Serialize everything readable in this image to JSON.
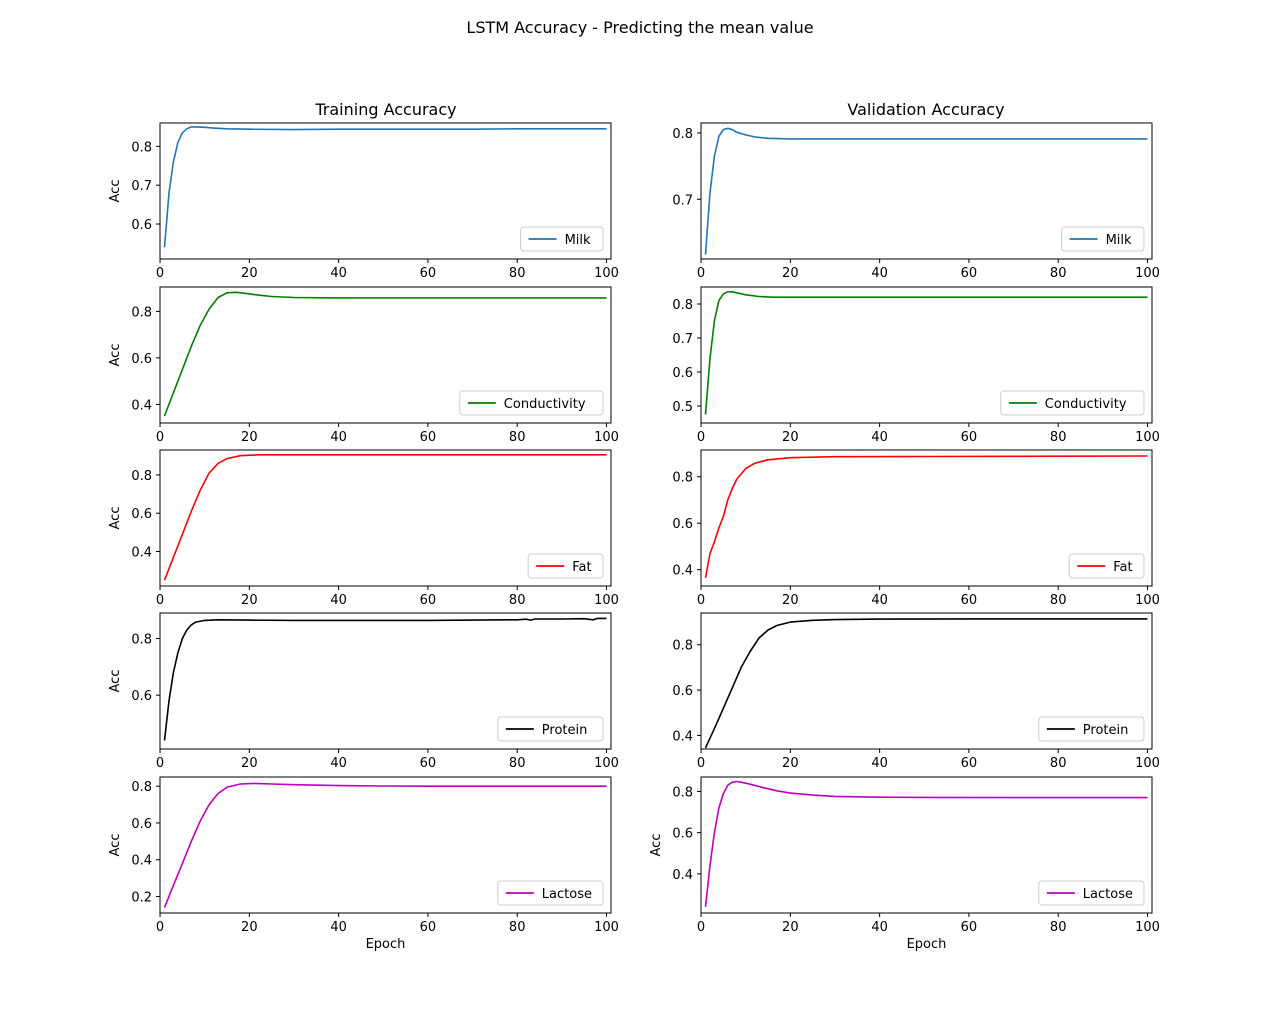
{
  "figure": {
    "suptitle": "LSTM Accuracy - Predicting the mean value",
    "col_titles": [
      "Training Accuracy",
      "Validation Accuracy"
    ]
  },
  "chart_data": [
    {
      "type": "line",
      "panel": "training",
      "row": 1,
      "col": 1,
      "ylabel": "Acc",
      "xlabel": "",
      "xlim": [
        1,
        100
      ],
      "ylim": [
        0.51,
        0.86
      ],
      "xticks": [
        0,
        20,
        40,
        60,
        80,
        100
      ],
      "yticks": [
        0.6,
        0.7,
        0.8
      ],
      "ytick_labels": [
        "0.6",
        "0.7",
        "0.8"
      ],
      "legend": "lower right",
      "series": [
        {
          "name": "Milk",
          "color": "#1f77b4",
          "points": [
            [
              1,
              0.54
            ],
            [
              2,
              0.68
            ],
            [
              3,
              0.76
            ],
            [
              4,
              0.81
            ],
            [
              5,
              0.835
            ],
            [
              6,
              0.845
            ],
            [
              7,
              0.85
            ],
            [
              8,
              0.85
            ],
            [
              10,
              0.849
            ],
            [
              12,
              0.847
            ],
            [
              15,
              0.845
            ],
            [
              20,
              0.844
            ],
            [
              30,
              0.843
            ],
            [
              40,
              0.844
            ],
            [
              50,
              0.844
            ],
            [
              60,
              0.844
            ],
            [
              70,
              0.844
            ],
            [
              80,
              0.845
            ],
            [
              90,
              0.845
            ],
            [
              100,
              0.845
            ]
          ]
        }
      ]
    },
    {
      "type": "line",
      "panel": "validation",
      "row": 1,
      "col": 2,
      "ylabel": "",
      "xlabel": "",
      "xlim": [
        1,
        100
      ],
      "ylim": [
        0.61,
        0.815
      ],
      "xticks": [
        0,
        20,
        40,
        60,
        80,
        100
      ],
      "yticks": [
        0.7,
        0.8
      ],
      "ytick_labels": [
        "0.7",
        "0.8"
      ],
      "legend": "lower right",
      "series": [
        {
          "name": "Milk",
          "color": "#1f77b4",
          "points": [
            [
              1,
              0.617
            ],
            [
              2,
              0.71
            ],
            [
              3,
              0.765
            ],
            [
              4,
              0.795
            ],
            [
              5,
              0.805
            ],
            [
              6,
              0.807
            ],
            [
              7,
              0.805
            ],
            [
              8,
              0.801
            ],
            [
              10,
              0.797
            ],
            [
              12,
              0.794
            ],
            [
              15,
              0.792
            ],
            [
              20,
              0.791
            ],
            [
              30,
              0.791
            ],
            [
              50,
              0.791
            ],
            [
              70,
              0.791
            ],
            [
              100,
              0.791
            ]
          ]
        }
      ]
    },
    {
      "type": "line",
      "panel": "training",
      "row": 2,
      "col": 1,
      "ylabel": "Acc",
      "xlabel": "",
      "xlim": [
        1,
        100
      ],
      "ylim": [
        0.32,
        0.905
      ],
      "xticks": [
        0,
        20,
        40,
        60,
        80,
        100
      ],
      "yticks": [
        0.4,
        0.6,
        0.8
      ],
      "ytick_labels": [
        "0.4",
        "0.6",
        "0.8"
      ],
      "legend": "lower right",
      "series": [
        {
          "name": "Conductivity",
          "color": "#008000",
          "points": [
            [
              1,
              0.35
            ],
            [
              3,
              0.45
            ],
            [
              5,
              0.55
            ],
            [
              7,
              0.65
            ],
            [
              9,
              0.74
            ],
            [
              11,
              0.81
            ],
            [
              13,
              0.86
            ],
            [
              15,
              0.88
            ],
            [
              17,
              0.882
            ],
            [
              19,
              0.878
            ],
            [
              22,
              0.87
            ],
            [
              25,
              0.864
            ],
            [
              30,
              0.86
            ],
            [
              40,
              0.858
            ],
            [
              50,
              0.858
            ],
            [
              60,
              0.858
            ],
            [
              70,
              0.858
            ],
            [
              80,
              0.858
            ],
            [
              90,
              0.858
            ],
            [
              100,
              0.858
            ]
          ]
        }
      ]
    },
    {
      "type": "line",
      "panel": "validation",
      "row": 2,
      "col": 2,
      "ylabel": "",
      "xlabel": "",
      "xlim": [
        1,
        100
      ],
      "ylim": [
        0.45,
        0.85
      ],
      "xticks": [
        0,
        20,
        40,
        60,
        80,
        100
      ],
      "yticks": [
        0.5,
        0.6,
        0.7,
        0.8
      ],
      "ytick_labels": [
        "0.5",
        "0.6",
        "0.7",
        "0.8"
      ],
      "legend": "lower right",
      "series": [
        {
          "name": "Conductivity",
          "color": "#008000",
          "points": [
            [
              1,
              0.475
            ],
            [
              2,
              0.64
            ],
            [
              3,
              0.75
            ],
            [
              4,
              0.81
            ],
            [
              5,
              0.83
            ],
            [
              6,
              0.836
            ],
            [
              7,
              0.836
            ],
            [
              8,
              0.833
            ],
            [
              10,
              0.827
            ],
            [
              13,
              0.822
            ],
            [
              16,
              0.82
            ],
            [
              20,
              0.82
            ],
            [
              30,
              0.82
            ],
            [
              50,
              0.82
            ],
            [
              70,
              0.82
            ],
            [
              100,
              0.82
            ]
          ]
        }
      ]
    },
    {
      "type": "line",
      "panel": "training",
      "row": 3,
      "col": 1,
      "ylabel": "Acc",
      "xlabel": "",
      "xlim": [
        1,
        100
      ],
      "ylim": [
        0.22,
        0.93
      ],
      "xticks": [
        0,
        20,
        40,
        60,
        80,
        100
      ],
      "yticks": [
        0.4,
        0.6,
        0.8
      ],
      "ytick_labels": [
        "0.4",
        "0.6",
        "0.8"
      ],
      "legend": "lower right",
      "series": [
        {
          "name": "Fat",
          "color": "#ff0000",
          "points": [
            [
              1,
              0.25
            ],
            [
              3,
              0.37
            ],
            [
              5,
              0.49
            ],
            [
              7,
              0.61
            ],
            [
              9,
              0.72
            ],
            [
              11,
              0.81
            ],
            [
              13,
              0.86
            ],
            [
              15,
              0.885
            ],
            [
              18,
              0.9
            ],
            [
              22,
              0.905
            ],
            [
              30,
              0.905
            ],
            [
              50,
              0.905
            ],
            [
              70,
              0.905
            ],
            [
              100,
              0.905
            ]
          ]
        }
      ]
    },
    {
      "type": "line",
      "panel": "validation",
      "row": 3,
      "col": 2,
      "ylabel": "",
      "xlabel": "",
      "xlim": [
        1,
        100
      ],
      "ylim": [
        0.33,
        0.915
      ],
      "xticks": [
        0,
        20,
        40,
        60,
        80,
        100
      ],
      "yticks": [
        0.4,
        0.6,
        0.8
      ],
      "ytick_labels": [
        "0.4",
        "0.6",
        "0.8"
      ],
      "legend": "lower right",
      "series": [
        {
          "name": "Fat",
          "color": "#ff0000",
          "points": [
            [
              1,
              0.365
            ],
            [
              2,
              0.47
            ],
            [
              3,
              0.52
            ],
            [
              4,
              0.58
            ],
            [
              5,
              0.63
            ],
            [
              6,
              0.7
            ],
            [
              7,
              0.75
            ],
            [
              8,
              0.79
            ],
            [
              10,
              0.835
            ],
            [
              12,
              0.858
            ],
            [
              15,
              0.873
            ],
            [
              20,
              0.882
            ],
            [
              30,
              0.886
            ],
            [
              50,
              0.887
            ],
            [
              70,
              0.888
            ],
            [
              100,
              0.889
            ]
          ]
        }
      ]
    },
    {
      "type": "line",
      "panel": "training",
      "row": 4,
      "col": 1,
      "ylabel": "Acc",
      "xlabel": "",
      "xlim": [
        1,
        100
      ],
      "ylim": [
        0.41,
        0.89
      ],
      "xticks": [
        0,
        20,
        40,
        60,
        80,
        100
      ],
      "yticks": [
        0.6,
        0.8
      ],
      "ytick_labels": [
        "0.6",
        "0.8"
      ],
      "legend": "lower right",
      "series": [
        {
          "name": "Protein",
          "color": "#000000",
          "points": [
            [
              1,
              0.44
            ],
            [
              2,
              0.58
            ],
            [
              3,
              0.68
            ],
            [
              4,
              0.75
            ],
            [
              5,
              0.8
            ],
            [
              6,
              0.83
            ],
            [
              7,
              0.848
            ],
            [
              8,
              0.858
            ],
            [
              10,
              0.864
            ],
            [
              13,
              0.866
            ],
            [
              20,
              0.865
            ],
            [
              30,
              0.864
            ],
            [
              40,
              0.864
            ],
            [
              50,
              0.864
            ],
            [
              60,
              0.864
            ],
            [
              70,
              0.865
            ],
            [
              80,
              0.866
            ],
            [
              82,
              0.868
            ],
            [
              83,
              0.865
            ],
            [
              84,
              0.869
            ],
            [
              90,
              0.869
            ],
            [
              95,
              0.87
            ],
            [
              97,
              0.866
            ],
            [
              98,
              0.871
            ],
            [
              100,
              0.871
            ]
          ]
        }
      ]
    },
    {
      "type": "line",
      "panel": "validation",
      "row": 4,
      "col": 2,
      "ylabel": "",
      "xlabel": "",
      "xlim": [
        1,
        100
      ],
      "ylim": [
        0.34,
        0.94
      ],
      "xticks": [
        0,
        20,
        40,
        60,
        80,
        100
      ],
      "yticks": [
        0.4,
        0.6,
        0.8
      ],
      "ytick_labels": [
        "0.4",
        "0.6",
        "0.8"
      ],
      "legend": "lower right",
      "series": [
        {
          "name": "Protein",
          "color": "#000000",
          "points": [
            [
              1,
              0.345
            ],
            [
              3,
              0.43
            ],
            [
              5,
              0.52
            ],
            [
              7,
              0.61
            ],
            [
              9,
              0.7
            ],
            [
              11,
              0.77
            ],
            [
              13,
              0.83
            ],
            [
              15,
              0.865
            ],
            [
              17,
              0.885
            ],
            [
              20,
              0.9
            ],
            [
              25,
              0.908
            ],
            [
              30,
              0.911
            ],
            [
              40,
              0.913
            ],
            [
              60,
              0.914
            ],
            [
              80,
              0.914
            ],
            [
              100,
              0.914
            ]
          ]
        }
      ]
    },
    {
      "type": "line",
      "panel": "training",
      "row": 5,
      "col": 1,
      "ylabel": "Acc",
      "xlabel": "Epoch",
      "xlim": [
        1,
        100
      ],
      "ylim": [
        0.11,
        0.85
      ],
      "xticks": [
        0,
        20,
        40,
        60,
        80,
        100
      ],
      "yticks": [
        0.2,
        0.4,
        0.6,
        0.8
      ],
      "ytick_labels": [
        "0.2",
        "0.4",
        "0.6",
        "0.8"
      ],
      "legend": "lower right",
      "series": [
        {
          "name": "Lactose",
          "color": "#bf00bf",
          "points": [
            [
              1,
              0.14
            ],
            [
              3,
              0.26
            ],
            [
              5,
              0.38
            ],
            [
              7,
              0.5
            ],
            [
              9,
              0.61
            ],
            [
              11,
              0.7
            ],
            [
              13,
              0.76
            ],
            [
              15,
              0.795
            ],
            [
              18,
              0.812
            ],
            [
              21,
              0.815
            ],
            [
              25,
              0.812
            ],
            [
              30,
              0.808
            ],
            [
              40,
              0.803
            ],
            [
              50,
              0.801
            ],
            [
              60,
              0.8
            ],
            [
              80,
              0.8
            ],
            [
              100,
              0.8
            ]
          ]
        }
      ]
    },
    {
      "type": "line",
      "panel": "validation",
      "row": 5,
      "col": 2,
      "ylabel": "Acc",
      "xlabel": "Epoch",
      "xlim": [
        1,
        100
      ],
      "ylim": [
        0.21,
        0.87
      ],
      "xticks": [
        0,
        20,
        40,
        60,
        80,
        100
      ],
      "yticks": [
        0.4,
        0.6,
        0.8
      ],
      "ytick_labels": [
        "0.4",
        "0.6",
        "0.8"
      ],
      "legend": "lower right",
      "series": [
        {
          "name": "Lactose",
          "color": "#bf00bf",
          "points": [
            [
              1,
              0.24
            ],
            [
              2,
              0.44
            ],
            [
              3,
              0.6
            ],
            [
              4,
              0.72
            ],
            [
              5,
              0.79
            ],
            [
              6,
              0.83
            ],
            [
              7,
              0.845
            ],
            [
              8,
              0.848
            ],
            [
              9,
              0.845
            ],
            [
              11,
              0.835
            ],
            [
              14,
              0.818
            ],
            [
              17,
              0.803
            ],
            [
              20,
              0.792
            ],
            [
              25,
              0.782
            ],
            [
              30,
              0.776
            ],
            [
              40,
              0.772
            ],
            [
              50,
              0.771
            ],
            [
              70,
              0.77
            ],
            [
              100,
              0.77
            ]
          ]
        }
      ]
    }
  ]
}
